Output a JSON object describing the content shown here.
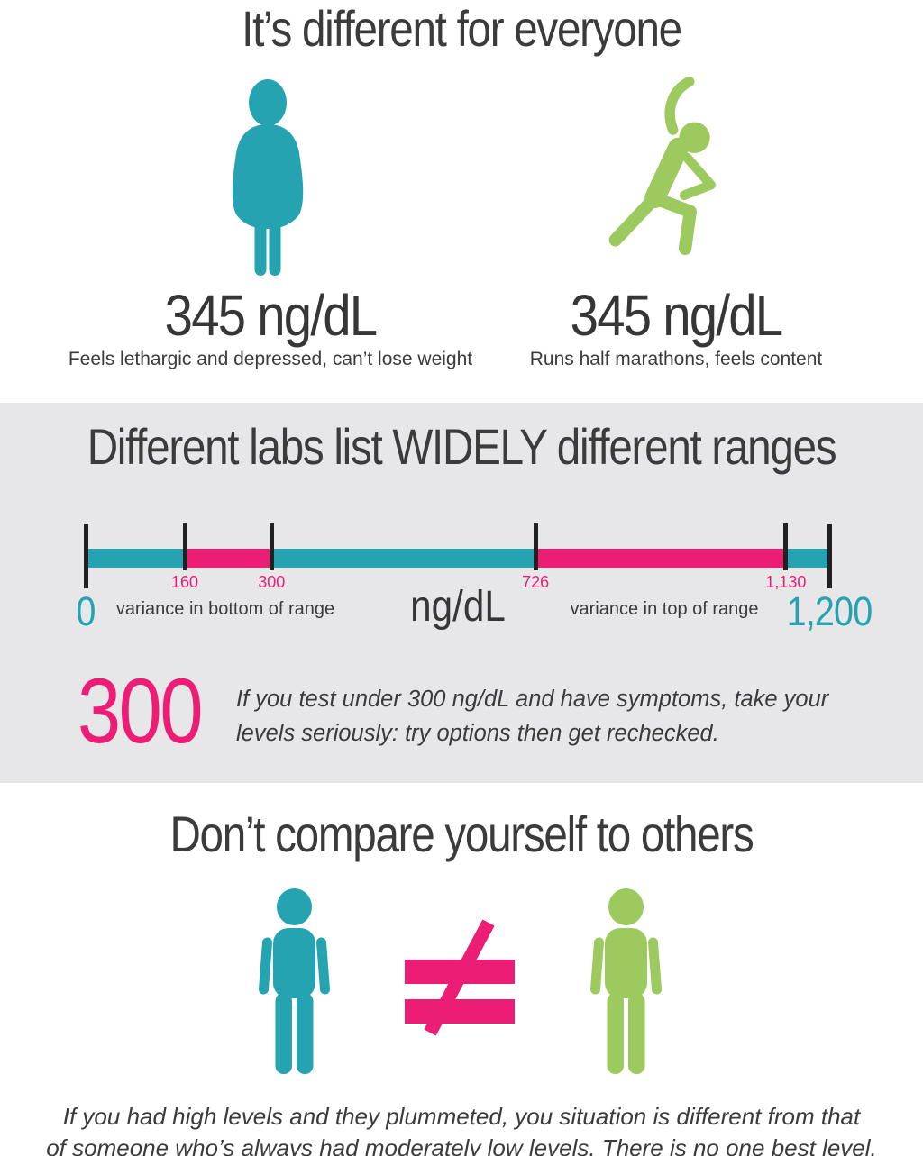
{
  "colors": {
    "teal": "#25a3b1",
    "green": "#9cca5e",
    "pink": "#ec1d75",
    "dark_text": "#3b3b3c",
    "gray_background": "#e7e6e8",
    "tick_black": "#232021"
  },
  "section_everyone": {
    "title": "It’s different for everyone",
    "left_person": {
      "icon": "overweight-person-icon",
      "value": "345 ng/dL",
      "caption": "Feels lethargic and depressed, can’t lose weight"
    },
    "right_person": {
      "icon": "exercising-person-icon",
      "value": "345 ng/dL",
      "caption": "Runs half marathons, feels content"
    }
  },
  "section_ranges": {
    "title": "Different labs list WIDELY different ranges",
    "chart_data": {
      "type": "number_line",
      "unit_label": "ng/dL",
      "axis_min": 0,
      "axis_max": 1200,
      "end_ticks": [
        {
          "value": 0,
          "label": "0"
        },
        {
          "value": 1200,
          "label": "1,200"
        }
      ],
      "inner_ticks": [
        {
          "value": 160,
          "label": "160"
        },
        {
          "value": 300,
          "label": "300"
        },
        {
          "value": 726,
          "label": "726"
        },
        {
          "value": 1130,
          "label": "1,130"
        }
      ],
      "segments": [
        {
          "from": 0,
          "to": 160,
          "color": "teal"
        },
        {
          "from": 160,
          "to": 300,
          "color": "pink"
        },
        {
          "from": 300,
          "to": 726,
          "color": "teal"
        },
        {
          "from": 726,
          "to": 1130,
          "color": "pink"
        },
        {
          "from": 1130,
          "to": 1200,
          "color": "teal"
        }
      ],
      "bottom_variance_label": "variance in bottom of range",
      "top_variance_label": "variance in top of range"
    },
    "callout": {
      "number": "300",
      "lines": [
        "If you test under 300 ng/dL and have symptoms, take your",
        "levels seriously: try options then get rechecked."
      ]
    }
  },
  "section_compare": {
    "title": "Don’t compare yourself to others",
    "left_icon": "standing-person-teal-icon",
    "not_equal_symbol": "≠",
    "right_icon": "standing-person-green-icon",
    "footer_lines": [
      "If you had high levels and they plummeted, you situation is different from that",
      "of someone who’s always had moderately low levels. There is no one best level."
    ]
  }
}
